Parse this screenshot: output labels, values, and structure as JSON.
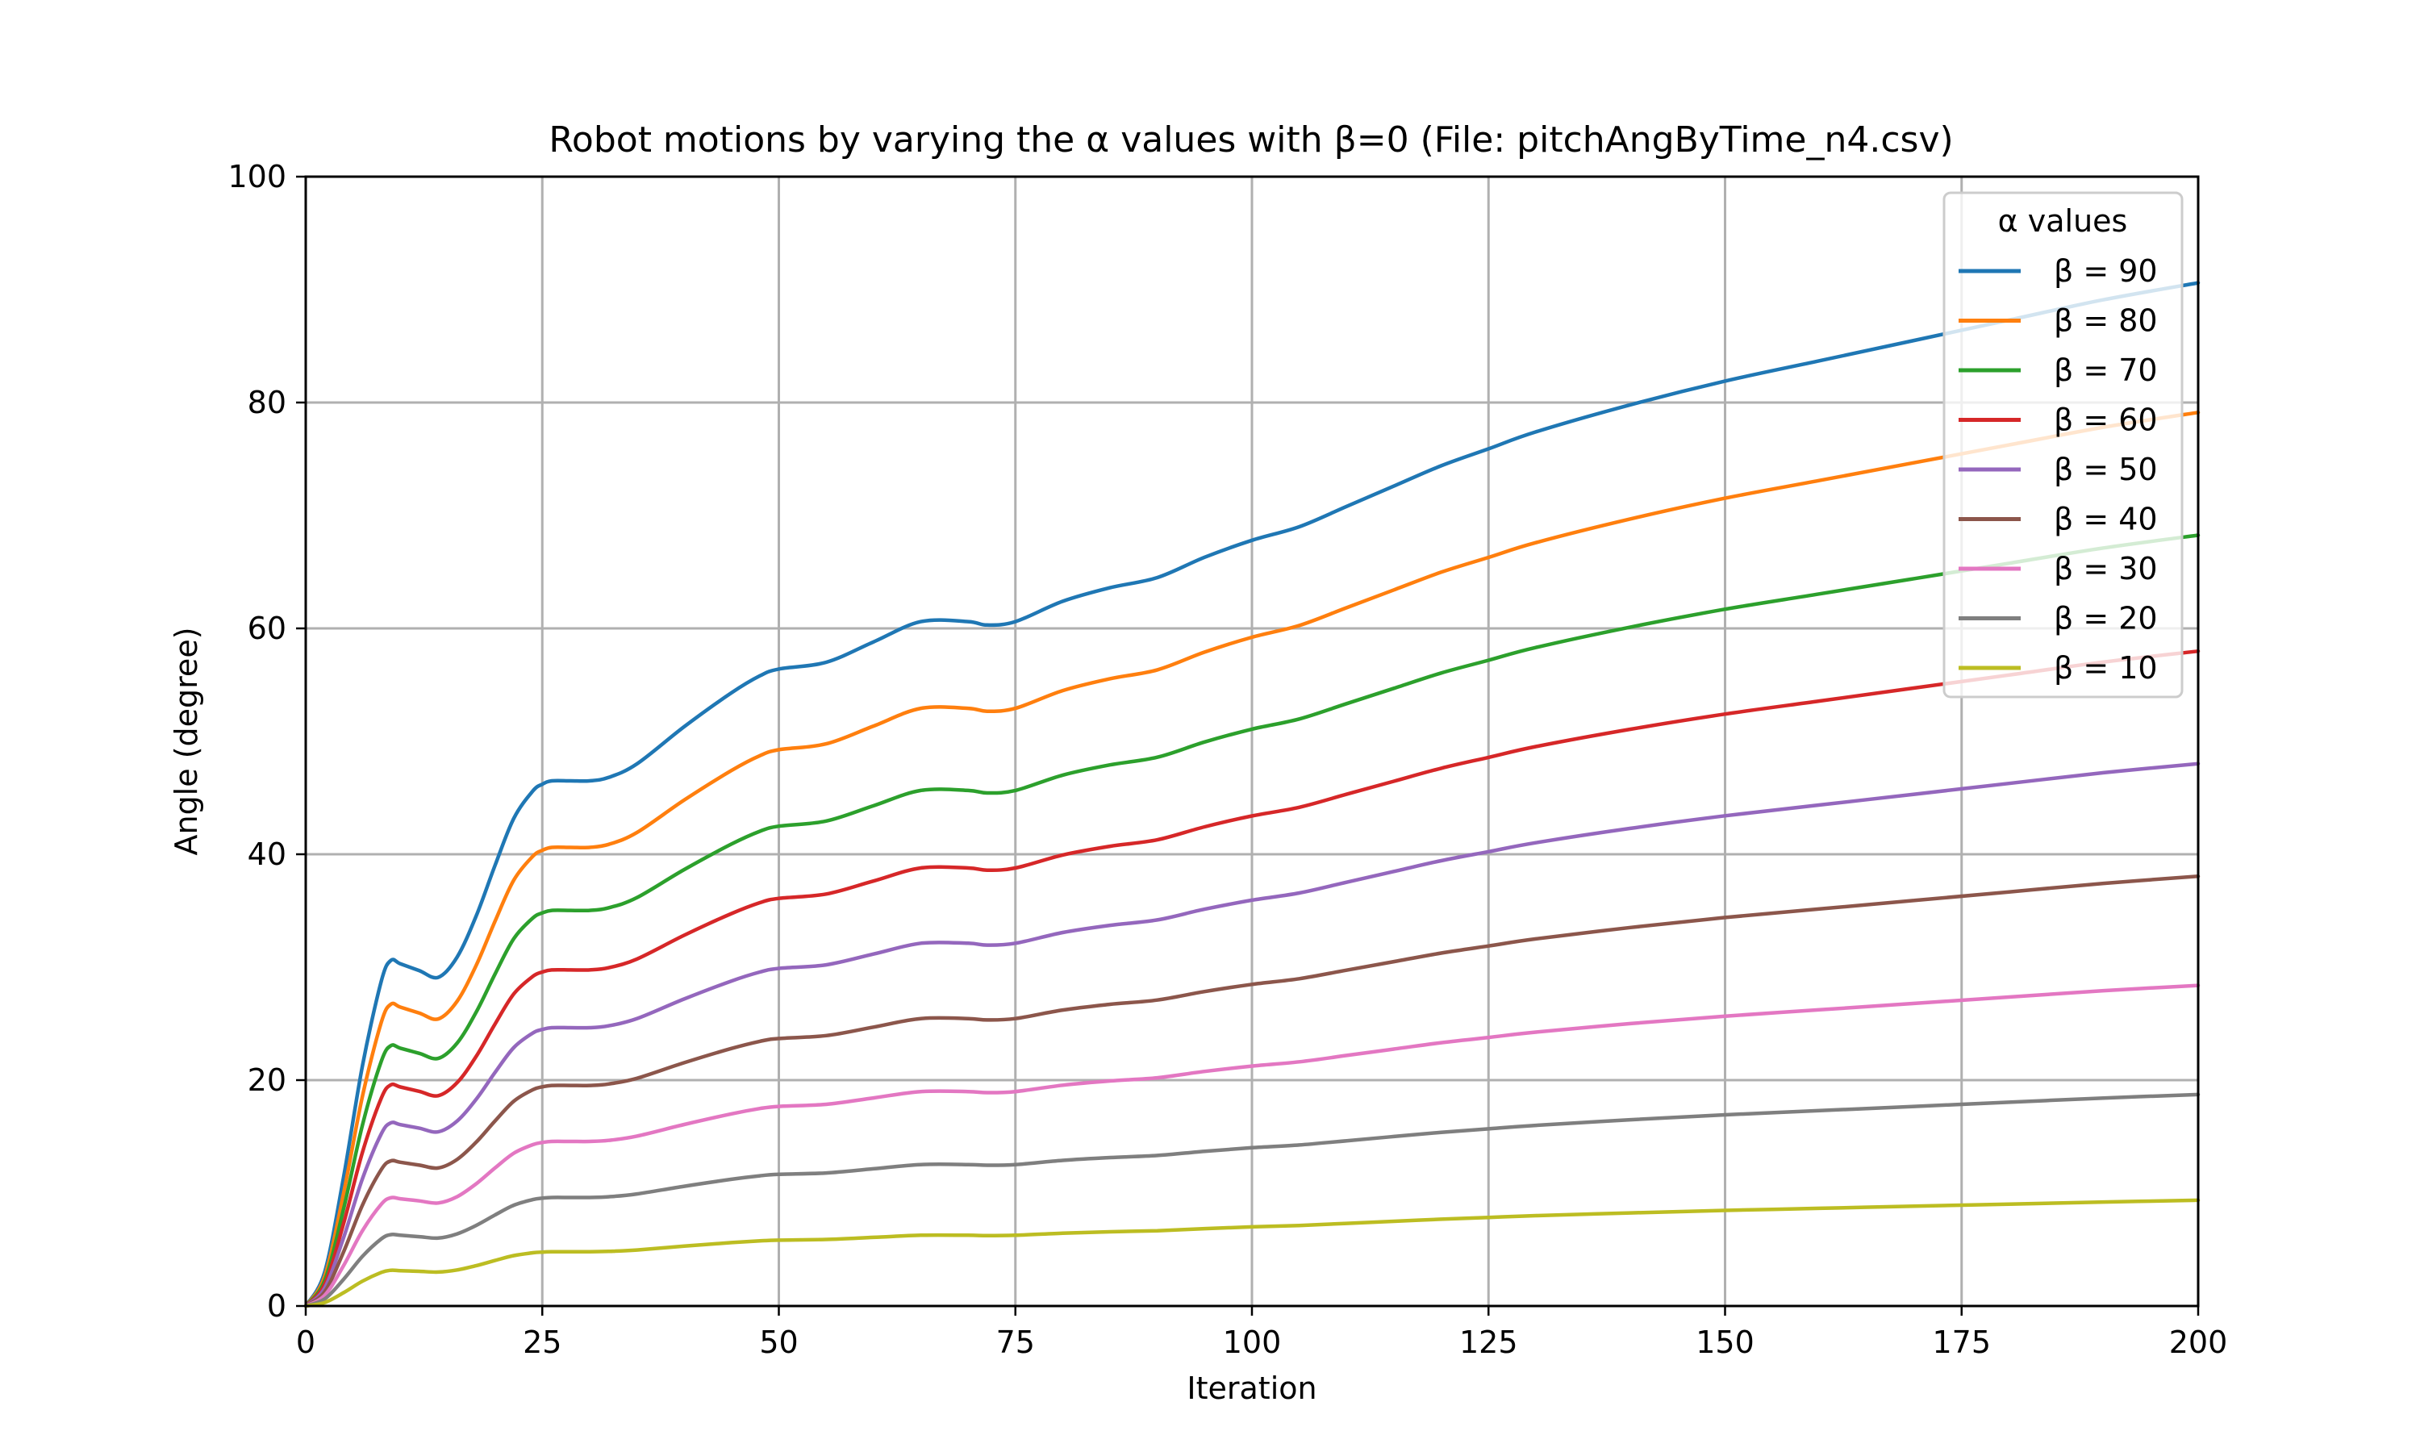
{
  "chart_data": {
    "type": "line",
    "title": "Robot motions by varying the α values with β=0 (File: pitchAngByTime_n4.csv)",
    "xlabel": "Iteration",
    "ylabel": "Angle (degree)",
    "xlim": [
      0,
      200
    ],
    "ylim": [
      0,
      100
    ],
    "xticks": [
      0,
      25,
      50,
      75,
      100,
      125,
      150,
      175,
      200
    ],
    "yticks": [
      0,
      20,
      40,
      60,
      80,
      100
    ],
    "grid": true,
    "legend": {
      "title": "α values",
      "placement": "top-right"
    },
    "x": [
      0,
      2,
      4,
      6,
      8,
      9,
      10,
      12,
      14,
      16,
      18,
      20,
      22,
      24,
      25,
      26,
      28,
      30,
      32,
      35,
      40,
      45,
      48,
      50,
      55,
      60,
      65,
      70,
      72,
      75,
      80,
      85,
      90,
      95,
      100,
      105,
      110,
      115,
      120,
      125,
      130,
      140,
      150,
      160,
      170,
      180,
      190,
      200
    ],
    "base_profile": [
      0,
      0.1,
      0.38,
      0.71,
      0.96,
      1.02,
      1.01,
      0.99,
      0.97,
      1.03,
      1.15,
      1.3,
      1.44,
      1.52,
      1.54,
      1.55,
      1.55,
      1.55,
      1.56,
      1.6,
      1.71,
      1.81,
      1.86,
      1.88,
      1.9,
      1.96,
      2.02,
      2.02,
      2.01,
      2.02,
      2.08,
      2.12,
      2.15,
      2.21,
      2.26,
      2.3,
      2.36,
      2.42,
      2.48,
      2.53,
      2.58,
      2.66,
      2.73,
      2.79,
      2.85,
      2.91,
      2.97,
      3.02
    ],
    "series": [
      {
        "name": "β = 90",
        "scale": 30.0,
        "color": "#1f77b4"
      },
      {
        "name": "β = 80",
        "scale": 26.2,
        "color": "#ff7f0e"
      },
      {
        "name": "β = 70",
        "scale": 22.6,
        "color": "#2ca02c"
      },
      {
        "name": "β = 60",
        "scale": 19.2,
        "color": "#d62728"
      },
      {
        "name": "β = 50",
        "scale": 15.9,
        "color": "#9467bd"
      },
      {
        "name": "β = 40",
        "scale": 12.6,
        "color": "#8c564b"
      },
      {
        "name": "β = 30",
        "scale": 9.4,
        "color": "#e377c2"
      },
      {
        "name": "β = 20",
        "scale": 6.2,
        "color": "#7f7f7f"
      },
      {
        "name": "β = 10",
        "scale": 3.1,
        "color": "#bcbd22"
      }
    ]
  }
}
